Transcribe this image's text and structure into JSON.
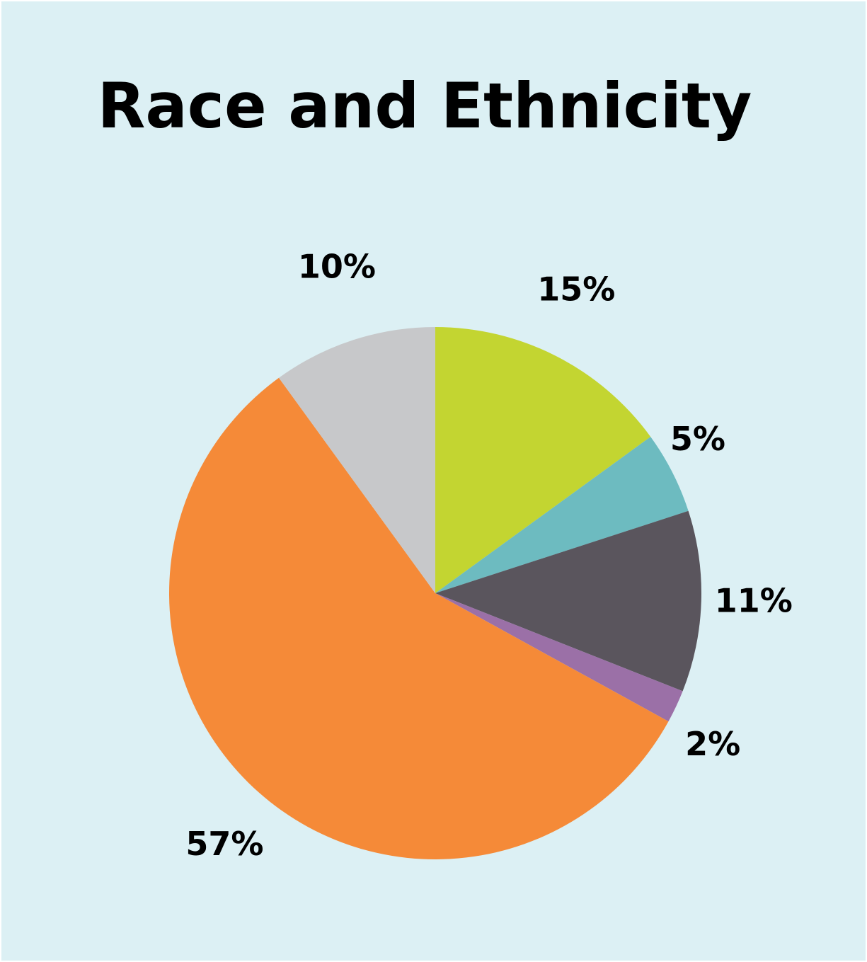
{
  "chart_data": {
    "type": "pie",
    "title": "Race and Ethnicity",
    "slices": [
      {
        "label": "15%",
        "value": 15,
        "color": "#c3d531"
      },
      {
        "label": "5%",
        "value": 5,
        "color": "#6dbbc0"
      },
      {
        "label": "11%",
        "value": 11,
        "color": "#5a555d"
      },
      {
        "label": "2%",
        "value": 2,
        "color": "#9b70a7"
      },
      {
        "label": "57%",
        "value": 57,
        "color": "#f58a38"
      },
      {
        "label": "10%",
        "value": 10,
        "color": "#c7c8ca"
      }
    ],
    "start_angle_deg": 0,
    "direction": "clockwise",
    "legend": "none",
    "background_color": "#dcf0f4"
  }
}
